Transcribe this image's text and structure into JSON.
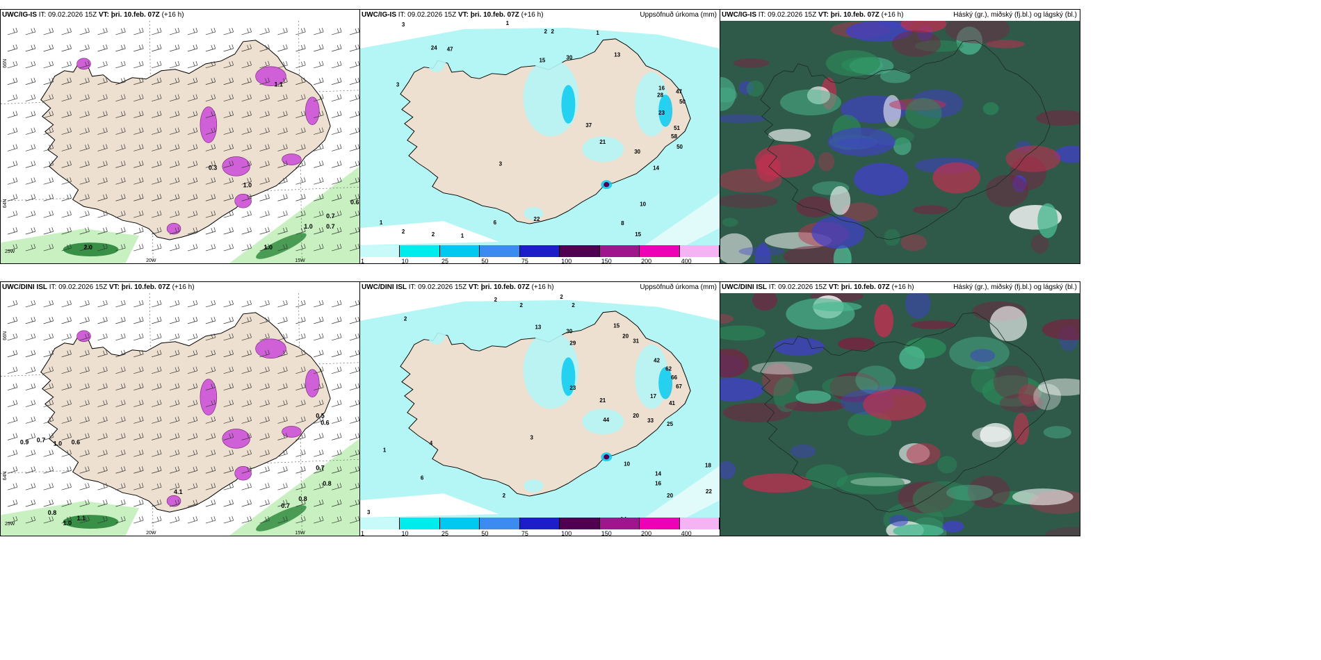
{
  "panels": [
    {
      "id": "tl",
      "model": "UWC/IG-IS",
      "it_label": "IT:",
      "it_value": "09.02.2026 15Z",
      "vt_label": "VT:",
      "vt_value": "þri. 10.feb. 07Z",
      "lead": "(+16 h)",
      "right_title": "",
      "lat_labels": [
        "66N",
        "64N"
      ],
      "lon_labels": [
        "25W",
        "20W",
        "15W"
      ],
      "value_labels": [
        "2.0",
        "1.0",
        "0.7",
        "0.7",
        "0.6",
        "1.0",
        "0.3",
        "1.0",
        "1.1"
      ]
    },
    {
      "id": "tm",
      "model": "UWC/IG-IS",
      "it_label": "IT:",
      "it_value": "09.02.2026 15Z",
      "vt_label": "VT:",
      "vt_value": "þri. 10.feb. 07Z",
      "lead": "(+16 h)",
      "right_title": "Uppsöfnuð úrkoma (mm)",
      "value_labels": [
        "3",
        "1",
        "2",
        "2",
        "1",
        "24",
        "47",
        "15",
        "30",
        "13",
        "16",
        "28",
        "47",
        "50",
        "51",
        "58",
        "50",
        "37",
        "21",
        "30",
        "23",
        "14",
        "10",
        "8",
        "15",
        "1",
        "2",
        "2",
        "1",
        "6",
        "22",
        "3",
        "3"
      ]
    },
    {
      "id": "tr",
      "model": "UWC/IG-IS",
      "it_label": "IT:",
      "it_value": "09.02.2026 15Z",
      "vt_label": "VT:",
      "vt_value": "þri. 10.feb. 07Z",
      "lead": "(+16 h)",
      "right_title": "Háský (gr.), miðský (fj.bl.) og lágský (bl.)"
    },
    {
      "id": "bl",
      "model": "UWC/DINI ISL",
      "it_label": "IT:",
      "it_value": "09.02.2026 15Z",
      "vt_label": "VT:",
      "vt_value": "þri. 10.feb. 07Z",
      "lead": "(+16 h)",
      "right_title": "",
      "lat_labels": [
        "66N",
        "64N"
      ],
      "lon_labels": [
        "25W",
        "20W",
        "15W"
      ],
      "value_labels": [
        "0.9",
        "0.7",
        "1.0",
        "0.6",
        "0.8",
        "1.1",
        "1.0",
        "0.8",
        "0.7",
        "0.8",
        "0.7",
        "0.6",
        "0.5",
        "4.1"
      ]
    },
    {
      "id": "bm",
      "model": "UWC/DINI ISL",
      "it_label": "IT:",
      "it_value": "09.02.2026 15Z",
      "vt_label": "VT:",
      "vt_value": "þri. 10.feb. 07Z",
      "lead": "(+16 h)",
      "right_title": "Uppsöfnuð úrkoma (mm)",
      "value_labels": [
        "2",
        "2",
        "2",
        "2",
        "13",
        "30",
        "15",
        "20",
        "31",
        "42",
        "29",
        "62",
        "66",
        "67",
        "23",
        "21",
        "17",
        "41",
        "33",
        "25",
        "44",
        "20",
        "10",
        "14",
        "18",
        "16",
        "22",
        "20",
        "14",
        "1",
        "3",
        "2",
        "4",
        "6",
        "2",
        "3"
      ]
    },
    {
      "id": "br",
      "model": "UWC/DINI ISL",
      "it_label": "IT:",
      "it_value": "09.02.2026 15Z",
      "vt_label": "VT:",
      "vt_value": "þri. 10.feb. 07Z",
      "lead": "(+16 h)",
      "right_title": "Háský (gr.), miðský (fj.bl.) og lágský (bl.)"
    }
  ],
  "colorbar": {
    "ticks": [
      "1",
      "10",
      "25",
      "50",
      "75",
      "100",
      "150",
      "200",
      "400"
    ],
    "colors": [
      "#c8fafa",
      "#00ecec",
      "#00c8f0",
      "#3c8cf0",
      "#1e1ec8",
      "#500050",
      "#a0148c",
      "#f000b4",
      "#f4b4f4"
    ]
  },
  "colors": {
    "land": "#eee0d0",
    "precip_light": "#b4f5f5",
    "green_light": "#c8f0c0",
    "green_dark": "#147828",
    "magenta": "#d060d8",
    "cloud_high": "#2a8a5a",
    "cloud_mid": "#c03050",
    "cloud_low": "#4040c8"
  }
}
